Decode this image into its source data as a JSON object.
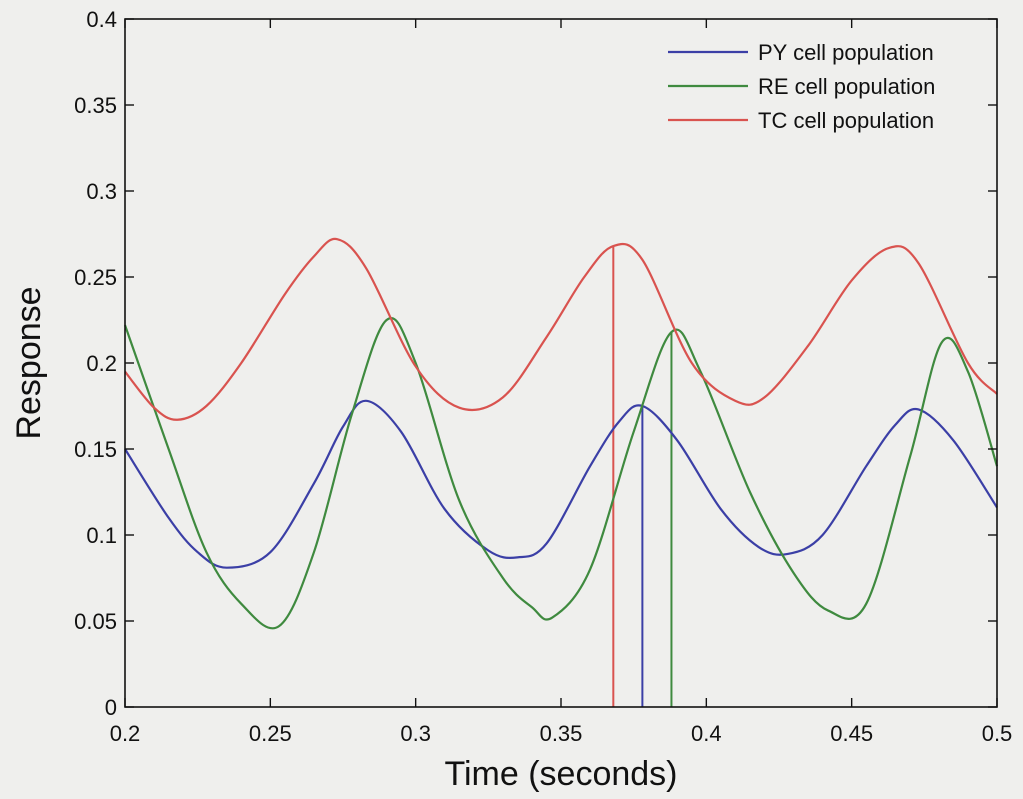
{
  "chart_data": {
    "type": "line",
    "title": "",
    "xlabel": "Time (seconds)",
    "ylabel": "Response",
    "xlim": [
      0.2,
      0.5
    ],
    "ylim": [
      0,
      0.4
    ],
    "xticks": [
      0.2,
      0.25,
      0.3,
      0.35,
      0.4,
      0.45,
      0.5
    ],
    "xtick_labels": [
      "0.2",
      "0.25",
      "0.3",
      "0.35",
      "0.4",
      "0.45",
      "0.5"
    ],
    "yticks": [
      0,
      0.05,
      0.1,
      0.15,
      0.2,
      0.25,
      0.3,
      0.35,
      0.4
    ],
    "ytick_labels": [
      "0",
      "0.05",
      "0.1",
      "0.15",
      "0.2",
      "0.25",
      "0.3",
      "0.35",
      "0.4"
    ],
    "grid": false,
    "legend_position": "top-right",
    "series": [
      {
        "name": "PY cell population",
        "color": "#3b3fa6",
        "x": [
          0.2,
          0.215,
          0.225,
          0.235,
          0.25,
          0.265,
          0.275,
          0.283,
          0.295,
          0.31,
          0.325,
          0.335,
          0.345,
          0.36,
          0.37,
          0.378,
          0.39,
          0.405,
          0.418,
          0.428,
          0.44,
          0.455,
          0.465,
          0.473,
          0.485,
          0.5
        ],
        "y": [
          0.15,
          0.11,
          0.09,
          0.081,
          0.09,
          0.13,
          0.163,
          0.178,
          0.16,
          0.115,
          0.091,
          0.087,
          0.095,
          0.14,
          0.166,
          0.175,
          0.155,
          0.115,
          0.093,
          0.089,
          0.1,
          0.14,
          0.164,
          0.173,
          0.155,
          0.116
        ]
      },
      {
        "name": "RE cell population",
        "color": "#3f8a3f",
        "x": [
          0.2,
          0.215,
          0.228,
          0.24,
          0.253,
          0.265,
          0.278,
          0.29,
          0.3,
          0.315,
          0.33,
          0.34,
          0.347,
          0.36,
          0.375,
          0.388,
          0.398,
          0.415,
          0.43,
          0.442,
          0.455,
          0.47,
          0.481,
          0.49,
          0.5
        ],
        "y": [
          0.222,
          0.15,
          0.09,
          0.06,
          0.047,
          0.09,
          0.17,
          0.225,
          0.2,
          0.12,
          0.075,
          0.058,
          0.052,
          0.08,
          0.16,
          0.218,
          0.195,
          0.125,
          0.078,
          0.056,
          0.06,
          0.145,
          0.212,
          0.195,
          0.14
        ]
      },
      {
        "name": "TC cell population",
        "color": "#d9534f",
        "x": [
          0.2,
          0.21,
          0.218,
          0.228,
          0.24,
          0.255,
          0.265,
          0.273,
          0.283,
          0.3,
          0.315,
          0.33,
          0.345,
          0.358,
          0.368,
          0.378,
          0.395,
          0.41,
          0.42,
          0.435,
          0.45,
          0.463,
          0.473,
          0.49,
          0.5
        ],
        "y": [
          0.195,
          0.174,
          0.167,
          0.175,
          0.2,
          0.24,
          0.262,
          0.272,
          0.255,
          0.198,
          0.174,
          0.18,
          0.215,
          0.25,
          0.268,
          0.26,
          0.2,
          0.178,
          0.18,
          0.21,
          0.248,
          0.267,
          0.258,
          0.2,
          0.182
        ]
      }
    ],
    "annotations": [
      {
        "type": "vertical-line",
        "series": "TC cell population",
        "x": 0.368,
        "y_top": 0.268,
        "color": "#d9534f"
      },
      {
        "type": "vertical-line",
        "series": "PY cell population",
        "x": 0.378,
        "y_top": 0.175,
        "color": "#3b3fa6"
      },
      {
        "type": "vertical-line",
        "series": "RE cell population",
        "x": 0.388,
        "y_top": 0.218,
        "color": "#3f8a3f"
      }
    ]
  }
}
